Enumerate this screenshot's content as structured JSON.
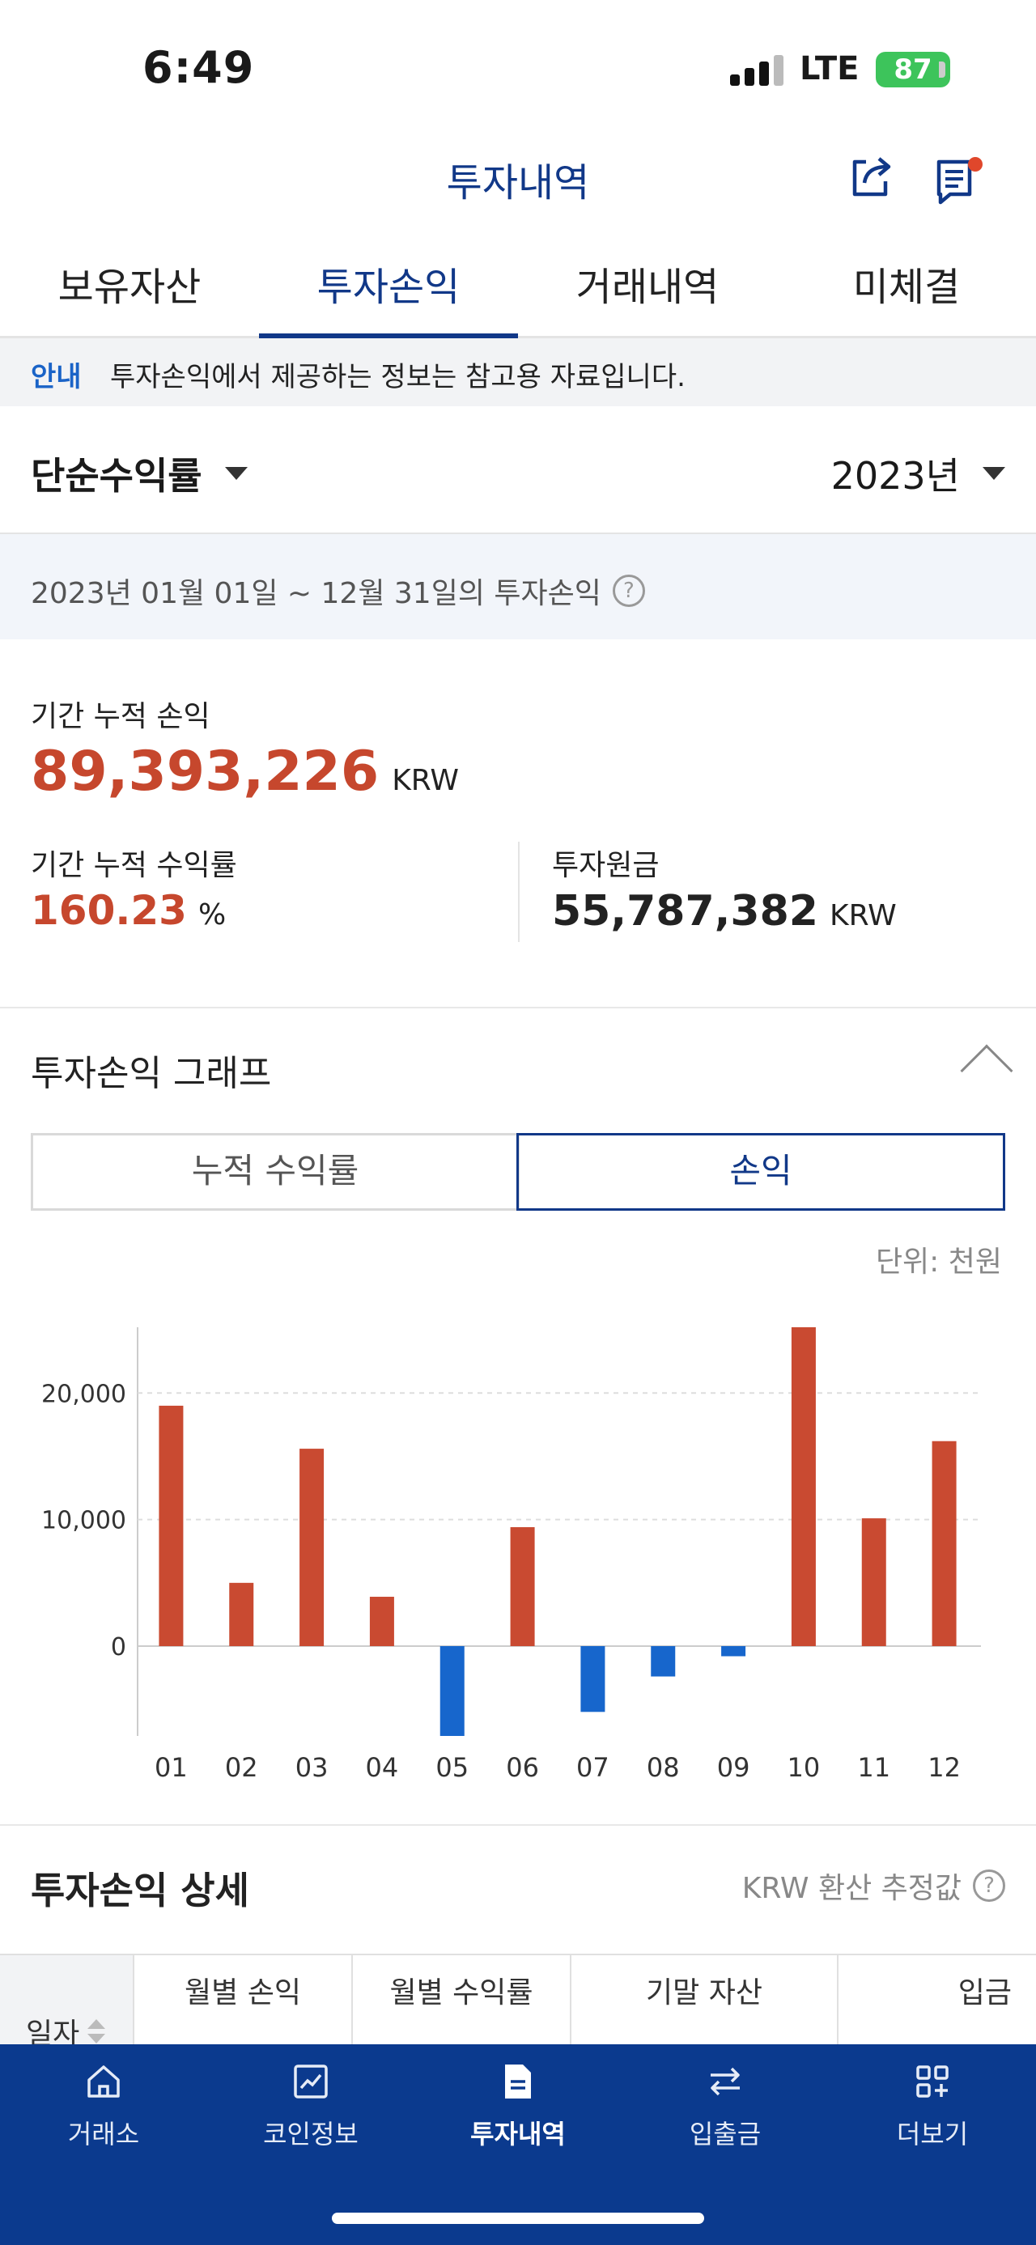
{
  "status": {
    "time": "6:49",
    "network": "LTE",
    "battery": "87"
  },
  "header": {
    "title": "투자내역"
  },
  "tabs": [
    {
      "label": "보유자산",
      "active": false
    },
    {
      "label": "투자손익",
      "active": true
    },
    {
      "label": "거래내역",
      "active": false
    },
    {
      "label": "미체결",
      "active": false
    }
  ],
  "info": {
    "tag": "안내",
    "text": "투자손익에서 제공하는 정보는 참고용 자료입니다."
  },
  "selectors": {
    "type": "단순수익률",
    "year": "2023년"
  },
  "period": {
    "text": "2023년 01월 01일 ~ 12월 31일의 투자손익"
  },
  "summary": {
    "cum_pnl_label": "기간 누적 손익",
    "cum_pnl_value": "89,393,226",
    "cum_pnl_unit": "KRW",
    "cum_rate_label": "기간 누적 수익률",
    "cum_rate_value": "160.23",
    "cum_rate_unit": "%",
    "principal_label": "투자원금",
    "principal_value": "55,787,382",
    "principal_unit": "KRW"
  },
  "graph": {
    "title": "투자손익 그래프",
    "segments": [
      {
        "label": "누적 수익률",
        "active": false
      },
      {
        "label": "손익",
        "active": true
      }
    ],
    "unit_note": "단위: 천원",
    "colors": {
      "positive": "#c94a31",
      "negative": "#1766cc",
      "grid": "#dddddd",
      "axis": "#cccccc"
    }
  },
  "chart_data": {
    "type": "bar",
    "categories": [
      "01",
      "02",
      "03",
      "04",
      "05",
      "06",
      "07",
      "08",
      "09",
      "10",
      "11",
      "12"
    ],
    "values": [
      19000,
      5000,
      15600,
      3900,
      -7100,
      9400,
      -5200,
      -2400,
      -800,
      25200,
      10100,
      16200
    ],
    "ylabel": "",
    "xlabel": "",
    "yticks": [
      0,
      10000,
      20000
    ],
    "ytick_labels": [
      "0",
      "10,000",
      "20,000"
    ],
    "ylim": [
      -7100,
      25200
    ],
    "grid": true
  },
  "detail": {
    "title": "투자손익 상세",
    "note": "KRW 환산 추정값",
    "columns": [
      "월별 손익",
      "월별 수익률",
      "기말 자산",
      "입금"
    ],
    "date_header": "일자"
  },
  "bottom_nav": [
    {
      "label": "거래소",
      "icon": "home-icon",
      "active": false
    },
    {
      "label": "코인정보",
      "icon": "chart-icon",
      "active": false
    },
    {
      "label": "투자내역",
      "icon": "document-icon",
      "active": true
    },
    {
      "label": "입출금",
      "icon": "transfer-icon",
      "active": false
    },
    {
      "label": "더보기",
      "icon": "more-grid-icon",
      "active": false
    }
  ]
}
